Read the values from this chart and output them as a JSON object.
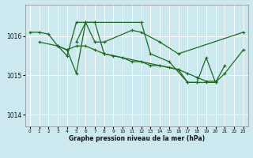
{
  "background_color": "#cce9f0",
  "grid_color": "#ffffff",
  "line_color": "#1a6b1a",
  "title": "Graphe pression niveau de la mer (hPa)",
  "xlim": [
    -0.5,
    23.5
  ],
  "ylim": [
    1013.7,
    1016.8
  ],
  "yticks": [
    1014,
    1015,
    1016
  ],
  "xticks": [
    0,
    1,
    2,
    3,
    4,
    5,
    6,
    7,
    8,
    9,
    10,
    11,
    12,
    13,
    14,
    15,
    16,
    17,
    18,
    19,
    20,
    21,
    22,
    23
  ],
  "curves": [
    {
      "x": [
        0,
        1,
        2,
        3,
        4,
        5,
        6,
        7,
        8,
        11,
        12,
        14,
        16,
        23
      ],
      "y": [
        1016.1,
        1016.1,
        1016.05,
        1015.75,
        1015.5,
        1016.35,
        1016.35,
        1015.85,
        1015.85,
        1016.15,
        1016.1,
        1015.85,
        1015.55,
        1016.1
      ]
    },
    {
      "x": [
        1,
        3,
        4,
        5,
        6,
        7,
        8,
        9,
        10,
        11,
        12,
        13,
        14,
        15,
        16,
        17,
        18,
        19,
        20
      ],
      "y": [
        1015.85,
        1015.75,
        1015.65,
        1015.75,
        1015.75,
        1015.65,
        1015.55,
        1015.5,
        1015.45,
        1015.35,
        1015.35,
        1015.25,
        1015.25,
        1015.2,
        1015.15,
        1015.05,
        1014.95,
        1014.85,
        1014.85
      ]
    },
    {
      "x": [
        3,
        4,
        5,
        6,
        7,
        8,
        16,
        17,
        18,
        19,
        20,
        21
      ],
      "y": [
        1015.75,
        1015.65,
        1015.05,
        1016.35,
        1016.35,
        1015.55,
        1015.15,
        1014.82,
        1014.82,
        1015.45,
        1014.82,
        1015.25
      ]
    },
    {
      "x": [
        5,
        6,
        7,
        12,
        13,
        15,
        17,
        18,
        19,
        20,
        21,
        23
      ],
      "y": [
        1015.85,
        1016.35,
        1016.35,
        1016.35,
        1015.55,
        1015.35,
        1014.82,
        1014.82,
        1014.82,
        1014.82,
        1015.05,
        1015.65
      ]
    }
  ]
}
